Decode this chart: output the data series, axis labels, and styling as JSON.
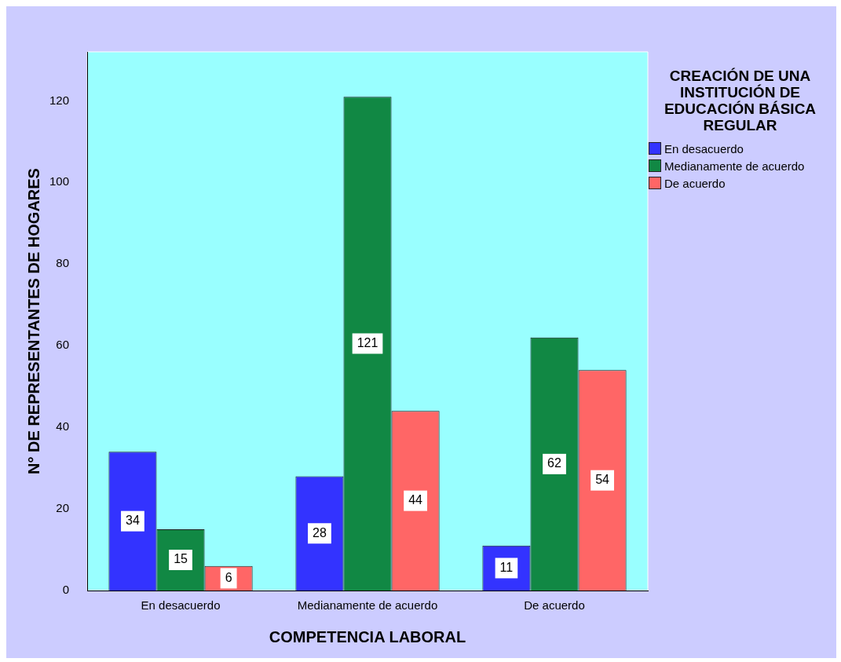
{
  "chart_data": {
    "type": "bar",
    "xlabel": "COMPETENCIA LABORAL",
    "ylabel": "N° DE REPRESENTANTES DE HOGARES",
    "legend_title": "CREACIÓN DE UNA INSTITUCIÓN DE EDUCACIÓN BÁSICA REGULAR",
    "legend": "top right",
    "categories": [
      "En desacuerdo",
      "Medianamente de acuerdo",
      "De acuerdo"
    ],
    "series": [
      {
        "name": "En desacuerdo",
        "color": "#3333ff",
        "values": [
          34,
          28,
          11
        ]
      },
      {
        "name": "Medianamente de acuerdo",
        "color": "#118844",
        "values": [
          15,
          121,
          62
        ]
      },
      {
        "name": "De acuerdo",
        "color": "#ff6666",
        "values": [
          6,
          44,
          54
        ]
      }
    ],
    "ylim": [
      0,
      132
    ],
    "yticks": [
      0,
      20,
      40,
      60,
      80,
      100,
      120
    ],
    "grid": false,
    "data_labels": true
  }
}
